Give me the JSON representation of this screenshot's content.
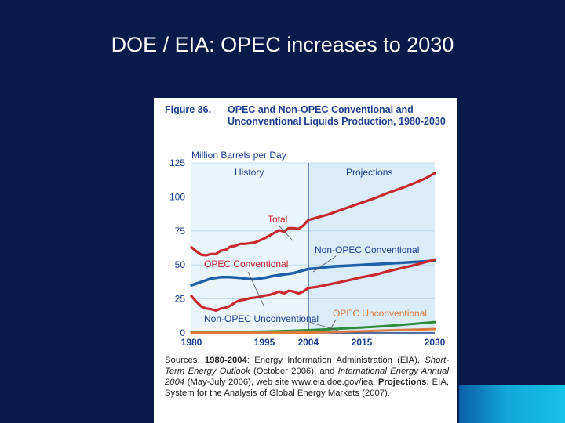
{
  "slide": {
    "title": "DOE / EIA: OPEC increases to 2030"
  },
  "figure": {
    "number": "Figure 36.",
    "caption": "OPEC and Non-OPEC Conventional and Unconventional Liquids Production, 1980-2030",
    "sources": {
      "prefix": "Sources.",
      "history_label": "1980-2004",
      "history_text": "Energy Information Administration (EIA),",
      "steo_title": "Short-Term Energy Outlook",
      "steo_text": "(October 2006), and",
      "ieo_title": "International Energy Annual 2004",
      "ieo_text": "(May-July 2006), web site www.eia.doe.gov/iea.",
      "projections_label": "Projections:",
      "projections_text": "EIA, System for the Analysis of Global Energy Markets (2007)."
    }
  },
  "colors": {
    "total": "#c8282d",
    "opec_conventional": "#c8282d",
    "non_opec_conventional": "#1f5fa6",
    "non_opec_unconventional": "#2e8b3a",
    "opec_unconventional": "#e0793a",
    "projection_shade": "#d9ecf8",
    "history_shade": "#eaf4fb",
    "axis": "#1b3f8f"
  },
  "chart_data": {
    "type": "line",
    "title": "OPEC and Non-OPEC Conventional and Unconventional Liquids Production, 1980-2030",
    "ylabel": "Million Barrels per Day",
    "xlabel": "",
    "xlim": [
      1980,
      2030
    ],
    "ylim": [
      0,
      125
    ],
    "x_ticks": [
      1980,
      1995,
      2004,
      2015,
      2030
    ],
    "y_ticks": [
      0,
      25,
      50,
      75,
      100,
      125
    ],
    "history_label": "History",
    "projections_label": "Projections",
    "divider_year": 2004,
    "series": [
      {
        "name": "Total",
        "key": "total",
        "points": [
          [
            1980,
            63
          ],
          [
            1981,
            60
          ],
          [
            1982,
            57.5
          ],
          [
            1983,
            57
          ],
          [
            1984,
            58
          ],
          [
            1985,
            58
          ],
          [
            1986,
            60.5
          ],
          [
            1987,
            61
          ],
          [
            1988,
            63.5
          ],
          [
            1989,
            64
          ],
          [
            1990,
            65.5
          ],
          [
            1991,
            65.5
          ],
          [
            1992,
            66
          ],
          [
            1993,
            66.5
          ],
          [
            1994,
            68
          ],
          [
            1995,
            69.5
          ],
          [
            1996,
            71.5
          ],
          [
            1997,
            73.5
          ],
          [
            1998,
            75.5
          ],
          [
            1999,
            74.5
          ],
          [
            2000,
            77
          ],
          [
            2001,
            77
          ],
          [
            2002,
            76.5
          ],
          [
            2003,
            79
          ],
          [
            2004,
            83
          ],
          [
            2006,
            85
          ],
          [
            2008,
            87
          ],
          [
            2010,
            89.5
          ],
          [
            2012,
            92
          ],
          [
            2014,
            94.5
          ],
          [
            2016,
            97
          ],
          [
            2018,
            99.5
          ],
          [
            2020,
            102.5
          ],
          [
            2022,
            105
          ],
          [
            2024,
            107.5
          ],
          [
            2026,
            110.5
          ],
          [
            2028,
            113.5
          ],
          [
            2030,
            117.5
          ]
        ]
      },
      {
        "name": "Non-OPEC Conventional",
        "key": "non_opec_conventional",
        "points": [
          [
            1980,
            35
          ],
          [
            1982,
            37.5
          ],
          [
            1984,
            40
          ],
          [
            1986,
            41
          ],
          [
            1988,
            41
          ],
          [
            1990,
            40.5
          ],
          [
            1992,
            39.5
          ],
          [
            1993,
            39.5
          ],
          [
            1995,
            40.5
          ],
          [
            1997,
            42
          ],
          [
            1999,
            43
          ],
          [
            2001,
            44
          ],
          [
            2003,
            46
          ],
          [
            2004,
            47
          ],
          [
            2006,
            47.5
          ],
          [
            2008,
            48.5
          ],
          [
            2010,
            49
          ],
          [
            2015,
            50
          ],
          [
            2020,
            51
          ],
          [
            2025,
            52
          ],
          [
            2030,
            53
          ]
        ]
      },
      {
        "name": "OPEC Conventional",
        "key": "opec_conventional",
        "points": [
          [
            1980,
            27
          ],
          [
            1981,
            23
          ],
          [
            1982,
            19.5
          ],
          [
            1983,
            18
          ],
          [
            1984,
            17.5
          ],
          [
            1985,
            16.5
          ],
          [
            1986,
            18
          ],
          [
            1987,
            18.5
          ],
          [
            1988,
            20
          ],
          [
            1989,
            22.5
          ],
          [
            1990,
            24
          ],
          [
            1991,
            24.5
          ],
          [
            1992,
            25.5
          ],
          [
            1993,
            26
          ],
          [
            1994,
            26.5
          ],
          [
            1995,
            27.5
          ],
          [
            1996,
            28
          ],
          [
            1997,
            29
          ],
          [
            1998,
            30.5
          ],
          [
            1999,
            29
          ],
          [
            2000,
            31
          ],
          [
            2001,
            30.5
          ],
          [
            2002,
            29
          ],
          [
            2003,
            30.5
          ],
          [
            2004,
            33
          ],
          [
            2006,
            34
          ],
          [
            2008,
            35.5
          ],
          [
            2010,
            37
          ],
          [
            2012,
            38.5
          ],
          [
            2015,
            41
          ],
          [
            2018,
            43
          ],
          [
            2020,
            45
          ],
          [
            2023,
            47.5
          ],
          [
            2026,
            50
          ],
          [
            2030,
            54
          ]
        ]
      },
      {
        "name": "Non-OPEC Unconventional",
        "key": "non_opec_unconventional",
        "points": [
          [
            1980,
            0.5
          ],
          [
            1990,
            0.8
          ],
          [
            1995,
            1
          ],
          [
            2000,
            1.5
          ],
          [
            2004,
            2
          ],
          [
            2010,
            3
          ],
          [
            2015,
            4
          ],
          [
            2020,
            5
          ],
          [
            2025,
            6.5
          ],
          [
            2030,
            8
          ]
        ]
      },
      {
        "name": "OPEC Unconventional",
        "key": "opec_unconventional",
        "points": [
          [
            1980,
            0.1
          ],
          [
            1995,
            0.2
          ],
          [
            2004,
            0.3
          ],
          [
            2010,
            0.8
          ],
          [
            2015,
            1.2
          ],
          [
            2020,
            1.8
          ],
          [
            2025,
            2.3
          ],
          [
            2030,
            2.8
          ]
        ]
      }
    ]
  }
}
